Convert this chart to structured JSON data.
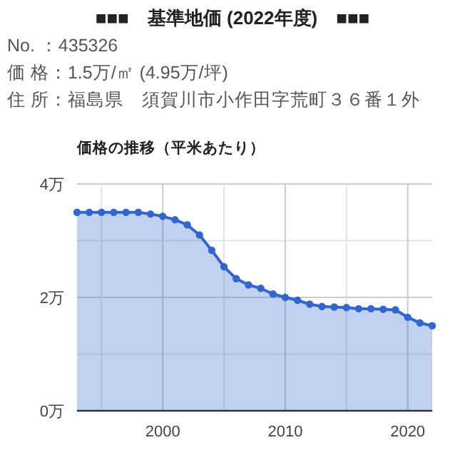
{
  "chart_data": {
    "type": "area",
    "title": "■■■　基準地価 (2022年度)　■■■",
    "subtitle": "価格の推移（平米あたり）",
    "annotations": [
      "No. ：435326",
      "価 格：1.5万/㎡ (4.95万/坪)",
      "住 所：福島県　須賀川市小作田字荒町３６番１外"
    ],
    "x": [
      1993,
      1994,
      1995,
      1996,
      1997,
      1998,
      1999,
      2000,
      2001,
      2002,
      2003,
      2004,
      2005,
      2006,
      2007,
      2008,
      2009,
      2010,
      2011,
      2012,
      2013,
      2014,
      2015,
      2016,
      2017,
      2018,
      2019,
      2020,
      2021,
      2022
    ],
    "values": [
      3.5,
      3.5,
      3.5,
      3.5,
      3.5,
      3.5,
      3.47,
      3.43,
      3.37,
      3.28,
      3.1,
      2.83,
      2.54,
      2.33,
      2.22,
      2.16,
      2.06,
      2.0,
      1.95,
      1.88,
      1.84,
      1.83,
      1.82,
      1.8,
      1.8,
      1.79,
      1.78,
      1.65,
      1.55,
      1.5
    ],
    "color": "#3366cc",
    "marker": "circle",
    "grid": true,
    "xlim": [
      1993,
      2022
    ],
    "ylim": [
      0,
      4
    ],
    "xticks": [
      {
        "value": 1995,
        "label": null
      },
      2000,
      {
        "value": 2005,
        "label": null
      },
      2010,
      {
        "value": 2015,
        "label": null
      },
      2020
    ],
    "yticks": [
      {
        "value": 0,
        "label": "0万"
      },
      {
        "value": 1,
        "label": null
      },
      {
        "value": 2,
        "label": "2万"
      },
      {
        "value": 3,
        "label": null
      },
      {
        "value": 4,
        "label": "4万"
      }
    ]
  }
}
